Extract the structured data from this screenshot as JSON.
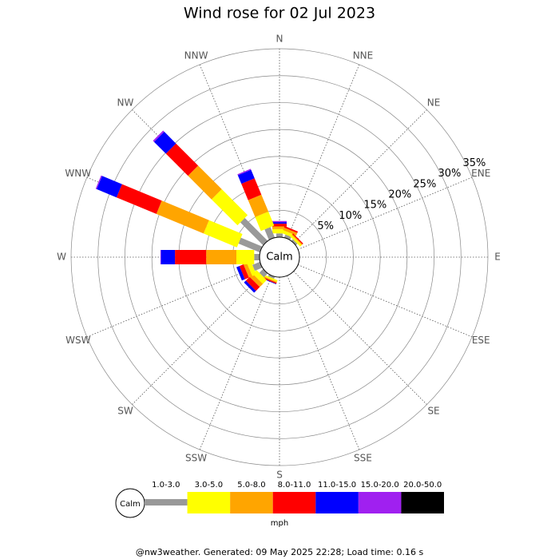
{
  "chart_data": {
    "type": "windrose",
    "title": "Wind rose for 02 Jul 2023",
    "calm_label": "Calm",
    "unit_label": "mph",
    "footer": "@nw3weather. Generated: 09 May 2025 22:28; Load time: 0.16 s",
    "categories": [
      "N",
      "NNE",
      "NE",
      "ENE",
      "E",
      "ESE",
      "SE",
      "SSE",
      "S",
      "SSW",
      "SW",
      "WSW",
      "W",
      "WNW",
      "NW",
      "NNW"
    ],
    "ylim": [
      0,
      35
    ],
    "yticks": [
      {
        "value": 5,
        "label": "5%"
      },
      {
        "value": 10,
        "label": "10%"
      },
      {
        "value": 15,
        "label": "15%"
      },
      {
        "value": 20,
        "label": "20%"
      },
      {
        "value": 25,
        "label": "25%"
      },
      {
        "value": 30,
        "label": "30%"
      },
      {
        "value": 35,
        "label": "35%"
      }
    ],
    "grid": true,
    "series": [
      {
        "name": "1.0-3.0",
        "color": "#999999",
        "values": [
          0.7,
          0.6,
          0.4,
          0,
          0,
          0,
          0,
          0,
          0,
          0.4,
          1.0,
          1.5,
          1.0,
          4.3,
          6.0,
          2.1
        ]
      },
      {
        "name": "3.0-5.0",
        "color": "#ffff00",
        "values": [
          0.8,
          0.6,
          0.4,
          0,
          0,
          0,
          0,
          0,
          0,
          0.3,
          1.0,
          0.8,
          3.3,
          6.7,
          6.8,
          2.8
        ]
      },
      {
        "name": "5.0-8.0",
        "color": "#ffa500",
        "values": [
          0.5,
          0.5,
          0.2,
          0,
          0,
          0,
          0,
          0,
          0,
          0.2,
          0.8,
          0.7,
          5.6,
          9.5,
          6.2,
          3.4
        ]
      },
      {
        "name": "8.0-11.0",
        "color": "#ff0000",
        "values": [
          0.5,
          0.3,
          0.2,
          0,
          0,
          0,
          0,
          0,
          0,
          0.2,
          1.0,
          0.8,
          5.8,
          8.0,
          5.8,
          3.3
        ]
      },
      {
        "name": "11.0-15.0",
        "color": "#0000ff",
        "values": [
          0.3,
          0,
          0,
          0,
          0,
          0,
          0,
          0,
          0,
          0.1,
          0.5,
          0.6,
          2.6,
          4.0,
          3.1,
          1.7
        ]
      },
      {
        "name": "15.0-20.0",
        "color": "#a020f0",
        "values": [
          0.2,
          0,
          0,
          0,
          0,
          0,
          0,
          0,
          0,
          0,
          0,
          0,
          0.1,
          0.2,
          0.3,
          0.2
        ]
      },
      {
        "name": "20.0-50.0",
        "color": "#000000",
        "values": [
          0,
          0,
          0,
          0,
          0,
          0,
          0,
          0,
          0,
          0,
          0,
          0,
          0,
          0,
          0,
          0
        ]
      }
    ]
  }
}
